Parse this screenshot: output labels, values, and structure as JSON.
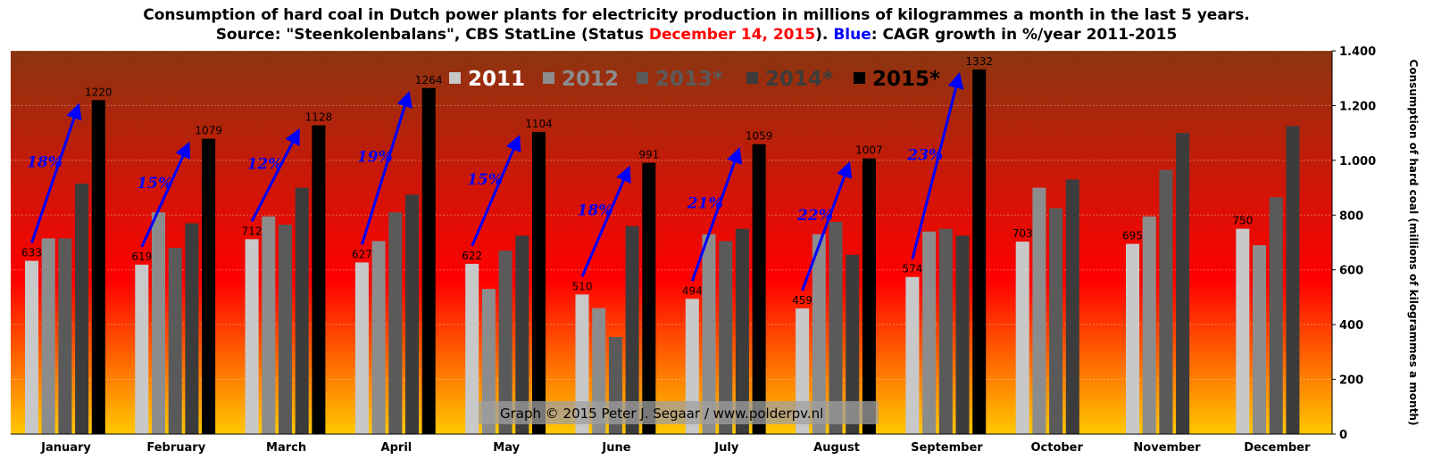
{
  "title": {
    "line1": "Consumption of hard coal in Dutch power plants for electricity production in millions of kilogrammes a month in the last 5 years.",
    "line2_prefix": "Source: \"Steenkolenbalans\", CBS StatLine (Status ",
    "line2_date": "December 14, 2015",
    "line2_mid": "). ",
    "line2_blue": "Blue",
    "line2_suffix": ": CAGR growth in %/year 2011-2015"
  },
  "credit": "Graph © 2015 Peter J. Segaar / www.polderpv.nl",
  "colors": {
    "s2011": "#c8c8c8",
    "s2012": "#8c8c8c",
    "s2013": "#5a5a5a",
    "s2014": "#3c3c3c",
    "s2015": "#000000",
    "arrow": "#0000ff",
    "bg_top": "#8b3510",
    "bg_mid": "#ff0000",
    "bg_bottom": "#ffc800"
  },
  "chart_data": {
    "type": "bar",
    "categories": [
      "January",
      "February",
      "March",
      "April",
      "May",
      "June",
      "July",
      "August",
      "September",
      "October",
      "November",
      "December"
    ],
    "series": [
      {
        "name": "2011",
        "values": [
          633,
          619,
          712,
          627,
          622,
          510,
          494,
          459,
          574,
          703,
          695,
          750
        ]
      },
      {
        "name": "2012",
        "values": [
          715,
          810,
          795,
          705,
          530,
          460,
          730,
          730,
          740,
          900,
          795,
          690
        ]
      },
      {
        "name": "2013*",
        "values": [
          715,
          680,
          765,
          810,
          670,
          355,
          705,
          775,
          750,
          825,
          965,
          865
        ]
      },
      {
        "name": "2014*",
        "values": [
          915,
          770,
          900,
          875,
          725,
          760,
          750,
          655,
          725,
          930,
          1100,
          1125
        ]
      },
      {
        "name": "2015*",
        "values": [
          1220,
          1079,
          1128,
          1264,
          1104,
          991,
          1059,
          1007,
          1332,
          null,
          null,
          null
        ]
      }
    ],
    "labels_2011": [
      "633",
      "619",
      "712",
      "627",
      "622",
      "510",
      "494",
      "459",
      "574",
      "703",
      "695",
      "750"
    ],
    "labels_2015": [
      "1220",
      "1079",
      "1128",
      "1264",
      "1104",
      "991",
      "1059",
      "1007",
      "1332"
    ],
    "cagr_labels": [
      "18%",
      "15%",
      "12%",
      "19%",
      "15%",
      "18%",
      "21%",
      "22%",
      "23%"
    ],
    "ylabel": "Consumption of hard coal (millions of kilogrammes a month)",
    "yticks": [
      0,
      200,
      400,
      600,
      800,
      1000,
      1200,
      1400
    ],
    "ytick_labels": [
      "0",
      "200",
      "400",
      "600",
      "800",
      "1.000",
      "1.200",
      "1.400"
    ],
    "ylim": [
      0,
      1400
    ],
    "grid": true,
    "legend_position": "top-center"
  }
}
